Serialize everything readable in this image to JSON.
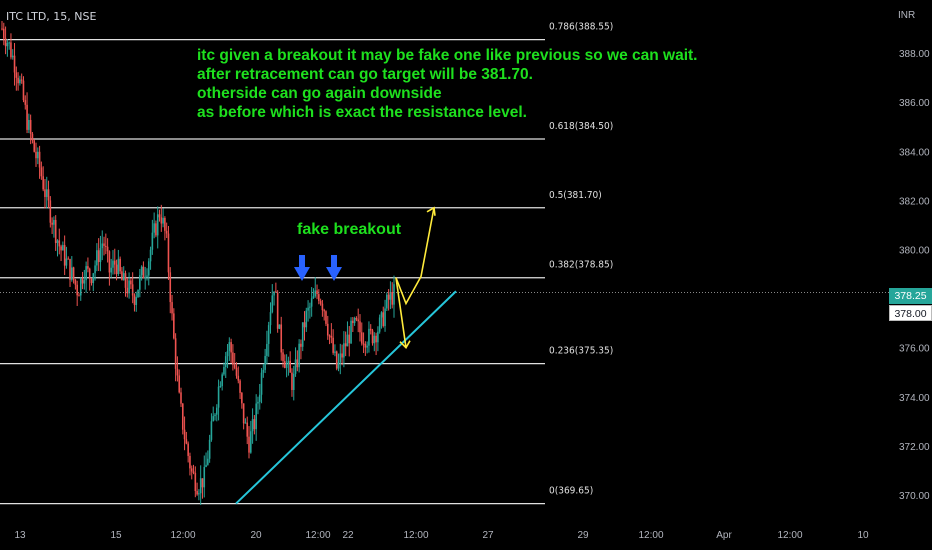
{
  "header": {
    "symbol": "ITC LTD, 15, NSE",
    "currency": "INR"
  },
  "annotations": {
    "note_lines": [
      "itc given a breakout it may be fake one like previous so we can wait.",
      "after retracement can go target will be 381.70.",
      "otherside can go again downside",
      " as before which is exact the resistance level."
    ],
    "fake_label": "fake breakout"
  },
  "price_tags": {
    "current": "378.25",
    "crosshair": "378.00"
  },
  "colors": {
    "background": "#000000",
    "up": "#26a69a",
    "down": "#ef5350",
    "trendline": "#26c6da",
    "fib_line": "#e0e0e0",
    "projection": "#ffeb3b",
    "arrow_marker": "#2962ff",
    "note_text": "#1ee01e"
  },
  "chart_data": {
    "type": "candlestick",
    "symbol": "ITC LTD",
    "interval": "15",
    "exchange": "NSE",
    "currency": "INR",
    "ylim": [
      369.2,
      390.0
    ],
    "y_ticks": [
      "370.00",
      "372.00",
      "374.00",
      "376.00",
      "378.00",
      "380.00",
      "382.00",
      "384.00",
      "386.00",
      "388.00"
    ],
    "x_ticks": [
      "13",
      "15",
      "12:00",
      "20",
      "12:00",
      "22",
      "12:00",
      "27",
      "29",
      "12:00",
      "Apr",
      "12:00",
      "10"
    ],
    "fib_levels": [
      {
        "ratio": "0.786",
        "price": 388.55,
        "label": "0.786(388.55)"
      },
      {
        "ratio": "0.618",
        "price": 384.5,
        "label": "0.618(384.50)"
      },
      {
        "ratio": "0.5",
        "price": 381.7,
        "label": "0.5(381.70)"
      },
      {
        "ratio": "0.382",
        "price": 378.85,
        "label": "0.382(378.85)"
      },
      {
        "ratio": "0.236",
        "price": 375.35,
        "label": "0.236(375.35)"
      },
      {
        "ratio": "0",
        "price": 369.65,
        "label": "0(369.65)"
      }
    ],
    "current_price": 378.25,
    "crosshair_price": 378.0,
    "trendline": {
      "from_price": 369.65,
      "to_price": 378.3
    },
    "projection_up": [
      378.85,
      377.8,
      378.9,
      381.7
    ],
    "projection_down": [
      378.85,
      376.0
    ],
    "close_path": [
      389.0,
      388.4,
      387.6,
      386.6,
      385.2,
      384.1,
      383.3,
      382.1,
      381.2,
      380.2,
      379.6,
      379.0,
      378.3,
      379.2,
      378.9,
      379.6,
      380.4,
      379.1,
      379.5,
      378.7,
      378.4,
      378.1,
      378.9,
      379.4,
      380.6,
      381.6,
      380.4,
      376.8,
      373.9,
      372.2,
      370.9,
      370.4,
      370.7,
      372.4,
      374.0,
      375.5,
      376.1,
      375.0,
      373.4,
      372.1,
      373.0,
      374.8,
      376.8,
      378.7,
      376.2,
      375.3,
      374.5,
      375.9,
      377.2,
      377.8,
      378.3,
      377.6,
      376.2,
      375.1,
      375.9,
      376.6,
      376.9,
      376.5,
      376.4,
      376.6,
      377.0,
      377.9,
      378.2
    ]
  }
}
